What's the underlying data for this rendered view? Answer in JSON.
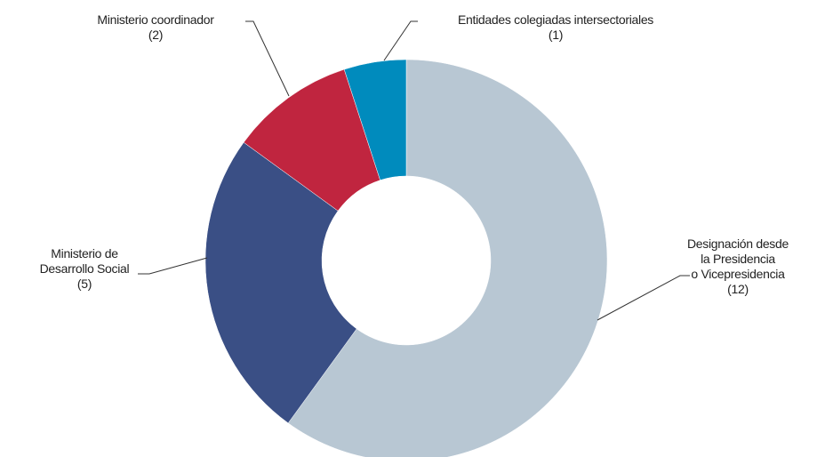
{
  "chart_data": {
    "type": "donut",
    "categories": [
      "Designación desde\nla Presidencia\no Vicepresidencia",
      "Ministerio de\nDesarrollo Social",
      "Ministerio coordinador",
      "Entidades colegiadas intersectoriales"
    ],
    "values": [
      12,
      5,
      2,
      1
    ],
    "value_labels": [
      "(12)",
      "(5)",
      "(2)",
      "(1)"
    ],
    "colors": [
      "#b8c7d3",
      "#3a4f85",
      "#c0253f",
      "#008bbd"
    ]
  }
}
